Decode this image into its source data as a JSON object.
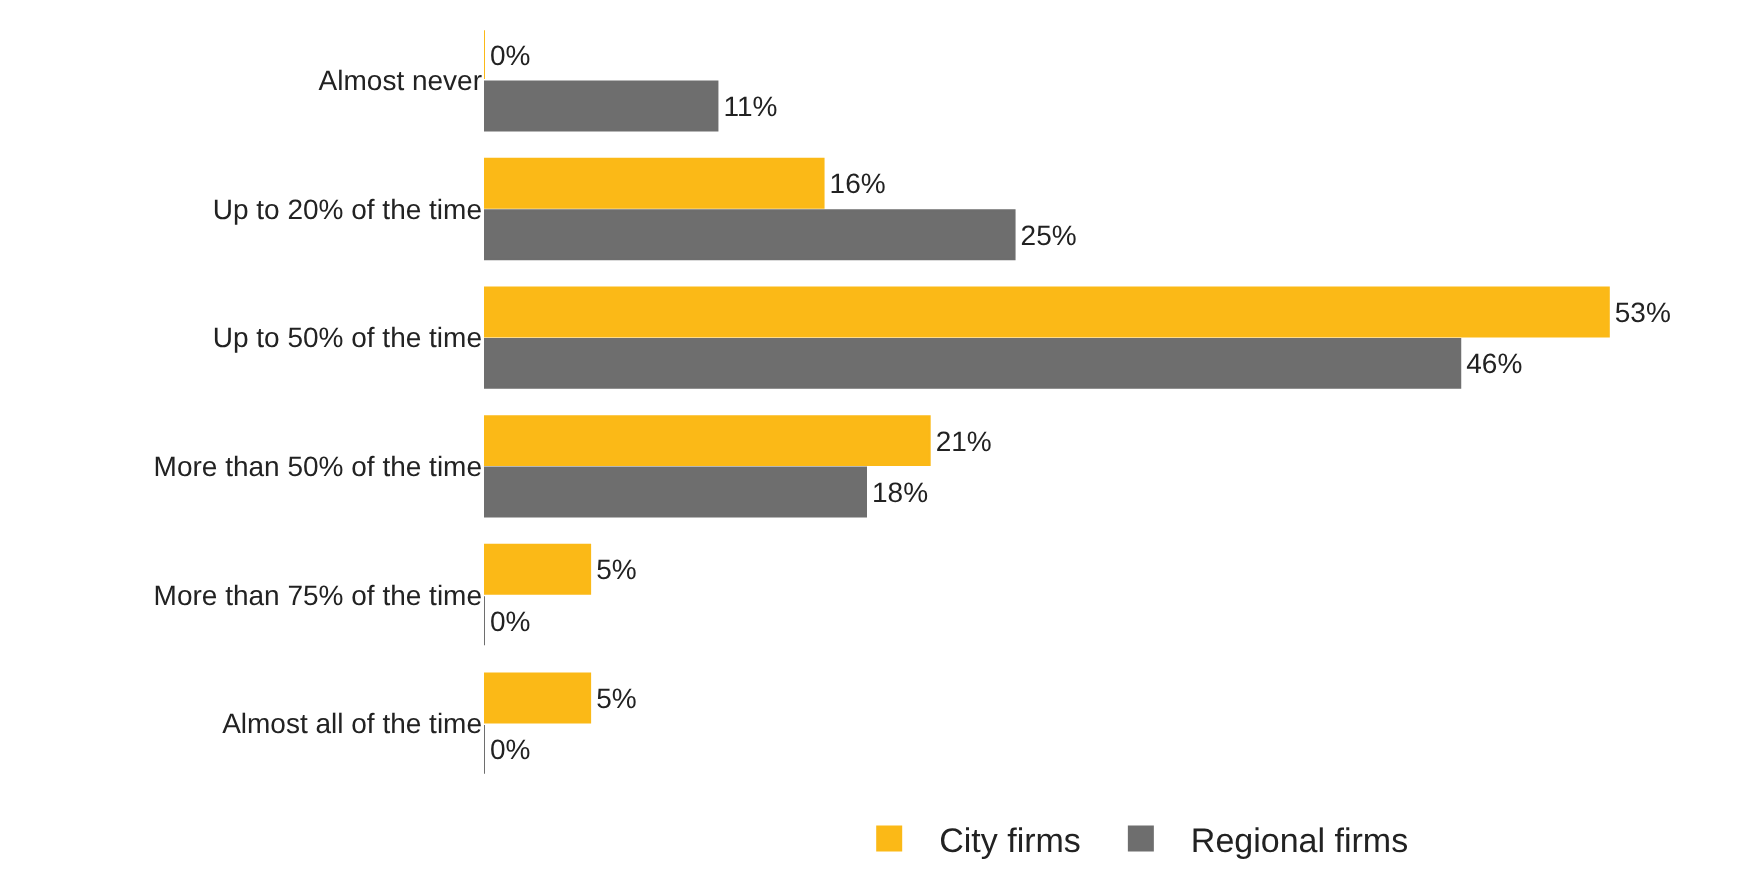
{
  "chart_data": {
    "type": "bar",
    "orientation": "horizontal",
    "categories": [
      "Almost never",
      "Up to 20% of the time",
      "Up to 50% of the time",
      "More than 50% of the time",
      "More than 75% of the time",
      "Almost all of the time"
    ],
    "series": [
      {
        "name": "City firms",
        "color": "#fbb917",
        "values": [
          0,
          16,
          53,
          21,
          5,
          5
        ],
        "value_labels": [
          "0%",
          "16%",
          "53%",
          "21%",
          "5%",
          "5%"
        ]
      },
      {
        "name": "Regional firms",
        "color": "#6e6e6e",
        "values": [
          11,
          25,
          46,
          18,
          0,
          0
        ],
        "value_labels": [
          "11%",
          "25%",
          "46%",
          "18%",
          "0%",
          "0%"
        ]
      }
    ],
    "legend": "bottom"
  }
}
